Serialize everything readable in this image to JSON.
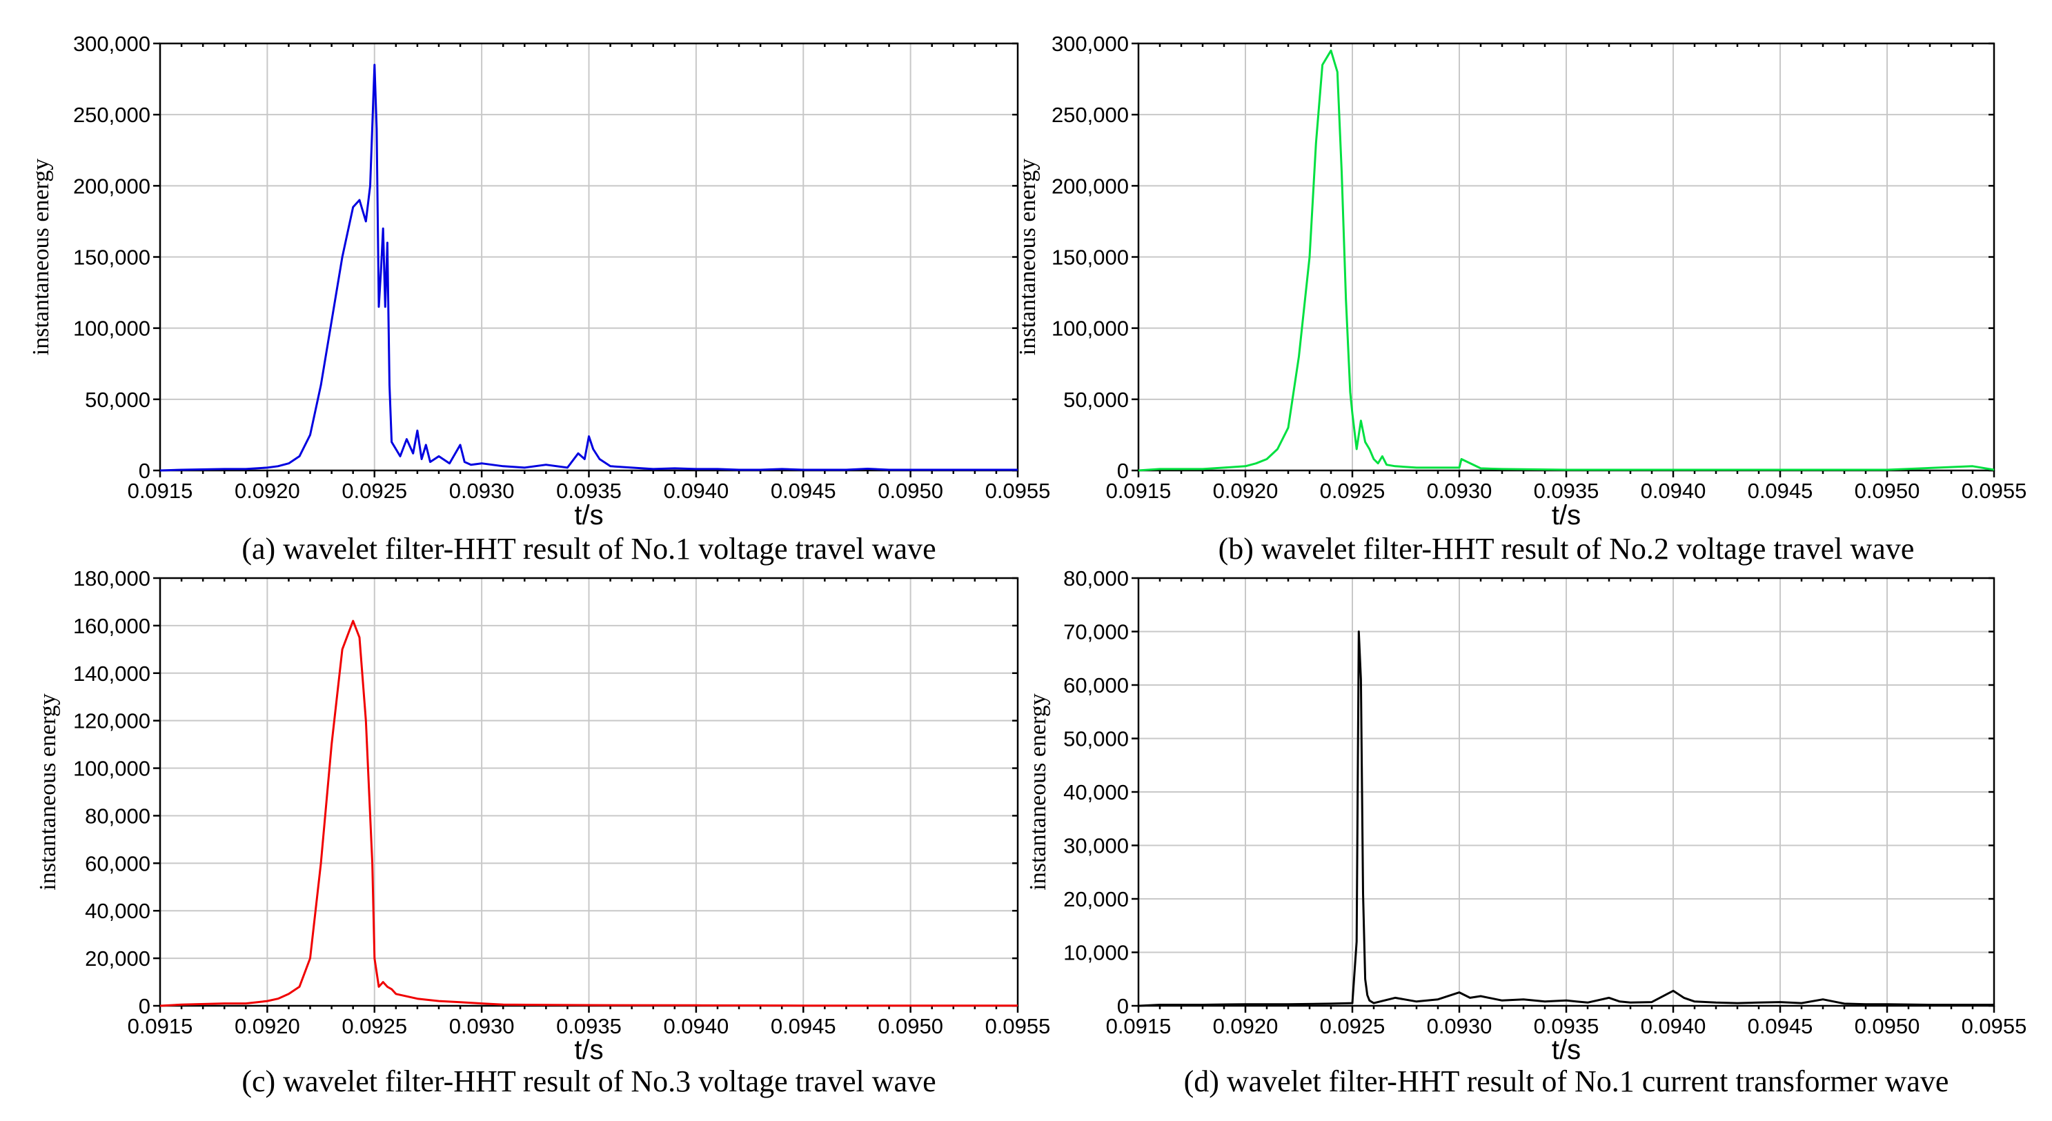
{
  "chart_data": [
    {
      "id": "a",
      "type": "line",
      "title": "",
      "caption": "(a) wavelet filter-HHT result of No.1 voltage travel wave",
      "xlabel": "t/s",
      "ylabel": "instantaneous energy",
      "xlim": [
        0.0915,
        0.0955
      ],
      "ylim": [
        0,
        300000
      ],
      "xticks": [
        "0.0915",
        "0.0920",
        "0.0925",
        "0.0930",
        "0.0935",
        "0.0940",
        "0.0945",
        "0.0950",
        "0.0955"
      ],
      "yticks": [
        "0",
        "50,000",
        "100,000",
        "150,000",
        "200,000",
        "250,000",
        "300,000"
      ],
      "grid": true,
      "series": [
        {
          "name": "No.1 voltage travel wave",
          "color": "#0000e0",
          "x": [
            0.0915,
            0.0916,
            0.0918,
            0.0919,
            0.092,
            0.09205,
            0.0921,
            0.09215,
            0.0922,
            0.09225,
            0.0923,
            0.09235,
            0.0924,
            0.09243,
            0.09246,
            0.09248,
            0.0925,
            0.09251,
            0.09252,
            0.09253,
            0.09254,
            0.09255,
            0.09256,
            0.09257,
            0.09258,
            0.0926,
            0.09262,
            0.09265,
            0.09268,
            0.0927,
            0.09272,
            0.09274,
            0.09276,
            0.0928,
            0.09285,
            0.0929,
            0.09292,
            0.09295,
            0.093,
            0.0931,
            0.0932,
            0.0933,
            0.0934,
            0.09345,
            0.09348,
            0.0935,
            0.09352,
            0.09355,
            0.0936,
            0.0937,
            0.0938,
            0.0939,
            0.094,
            0.0941,
            0.0942,
            0.0943,
            0.0944,
            0.0945,
            0.0946,
            0.0947,
            0.0948,
            0.0949,
            0.095,
            0.0951,
            0.0952,
            0.0953,
            0.0954,
            0.0955
          ],
          "y": [
            0,
            500,
            1000,
            1000,
            2000,
            3000,
            5000,
            10000,
            25000,
            60000,
            105000,
            150000,
            185000,
            190000,
            175000,
            200000,
            285000,
            240000,
            115000,
            140000,
            170000,
            115000,
            160000,
            60000,
            20000,
            15000,
            10000,
            22000,
            12000,
            28000,
            8000,
            18000,
            6000,
            10000,
            5000,
            18000,
            6000,
            4000,
            5000,
            3000,
            2000,
            4000,
            2000,
            12000,
            8000,
            24000,
            15000,
            8000,
            3000,
            2000,
            1000,
            1500,
            1000,
            1000,
            500,
            500,
            1000,
            500,
            500,
            500,
            1200,
            500,
            500,
            500,
            500,
            500,
            500,
            500
          ]
        }
      ]
    },
    {
      "id": "b",
      "type": "line",
      "title": "",
      "caption": "(b) wavelet filter-HHT result of No.2 voltage travel wave",
      "xlabel": "t/s",
      "ylabel": "instantaneous energy",
      "xlim": [
        0.0915,
        0.0955
      ],
      "ylim": [
        0,
        300000
      ],
      "xticks": [
        "0.0915",
        "0.0920",
        "0.0925",
        "0.0930",
        "0.0935",
        "0.0940",
        "0.0945",
        "0.0950",
        "0.0955"
      ],
      "yticks": [
        "0",
        "50,000",
        "100,000",
        "150,000",
        "200,000",
        "250,000",
        "300,000"
      ],
      "grid": true,
      "series": [
        {
          "name": "No.2 voltage travel wave",
          "color": "#00e040",
          "x": [
            0.0915,
            0.0916,
            0.0918,
            0.0919,
            0.092,
            0.09205,
            0.0921,
            0.09215,
            0.0922,
            0.09225,
            0.0923,
            0.09233,
            0.09236,
            0.0924,
            0.09243,
            0.09245,
            0.09247,
            0.09249,
            0.0925,
            0.09252,
            0.09254,
            0.09256,
            0.09258,
            0.0926,
            0.09262,
            0.09264,
            0.09266,
            0.0927,
            0.0928,
            0.0929,
            0.093,
            0.09301,
            0.0931,
            0.0932,
            0.0935,
            0.094,
            0.0945,
            0.095,
            0.0954,
            0.0955
          ],
          "y": [
            0,
            1000,
            1000,
            2000,
            3000,
            5000,
            8000,
            15000,
            30000,
            80000,
            150000,
            230000,
            285000,
            295000,
            280000,
            210000,
            120000,
            55000,
            40000,
            15000,
            35000,
            20000,
            15000,
            8000,
            5000,
            10000,
            4000,
            3000,
            2000,
            2000,
            2000,
            8000,
            1500,
            1000,
            500,
            500,
            500,
            500,
            3000,
            500
          ]
        }
      ]
    },
    {
      "id": "c",
      "type": "line",
      "title": "",
      "caption": "(c) wavelet filter-HHT result of No.3 voltage travel wave",
      "xlabel": "t/s",
      "ylabel": "instantaneous energy",
      "xlim": [
        0.0915,
        0.0955
      ],
      "ylim": [
        0,
        180000
      ],
      "xticks": [
        "0.0915",
        "0.0920",
        "0.0925",
        "0.0930",
        "0.0935",
        "0.0940",
        "0.0945",
        "0.0950",
        "0.0955"
      ],
      "yticks": [
        "0",
        "20,000",
        "40,000",
        "60,000",
        "80,000",
        "100,000",
        "120,000",
        "140,000",
        "160,000",
        "180,000"
      ],
      "grid": true,
      "series": [
        {
          "name": "No.3 voltage travel wave",
          "color": "#f00000",
          "x": [
            0.0915,
            0.0916,
            0.0918,
            0.0919,
            0.092,
            0.09205,
            0.0921,
            0.09215,
            0.0922,
            0.09225,
            0.0923,
            0.09235,
            0.0924,
            0.09243,
            0.09246,
            0.09249,
            0.0925,
            0.09252,
            0.09254,
            0.09256,
            0.09258,
            0.0926,
            0.0927,
            0.0928,
            0.0929,
            0.093,
            0.0931,
            0.0935,
            0.094,
            0.0945,
            0.095,
            0.0955
          ],
          "y": [
            0,
            500,
            1000,
            1000,
            2000,
            3000,
            5000,
            8000,
            20000,
            60000,
            110000,
            150000,
            162000,
            155000,
            120000,
            60000,
            20000,
            8000,
            10000,
            8000,
            7000,
            5000,
            3000,
            2000,
            1500,
            1000,
            500,
            300,
            200,
            100,
            100,
            100
          ]
        }
      ]
    },
    {
      "id": "d",
      "type": "line",
      "title": "",
      "caption": "(d) wavelet filter-HHT result of No.1 current transformer wave",
      "xlabel": "t/s",
      "ylabel": "instantaneous energy",
      "xlim": [
        0.0915,
        0.0955
      ],
      "ylim": [
        0,
        80000
      ],
      "xticks": [
        "0.0915",
        "0.0920",
        "0.0925",
        "0.0930",
        "0.0935",
        "0.0940",
        "0.0945",
        "0.0950",
        "0.0955"
      ],
      "yticks": [
        "0",
        "10,000",
        "20,000",
        "30,000",
        "40,000",
        "50,000",
        "60,000",
        "70,000",
        "80,000"
      ],
      "grid": true,
      "series": [
        {
          "name": "No.1 current transformer wave",
          "color": "#000000",
          "x": [
            0.0915,
            0.0916,
            0.0918,
            0.092,
            0.0922,
            0.0924,
            0.0925,
            0.09252,
            0.09253,
            0.09254,
            0.09255,
            0.09256,
            0.09257,
            0.09258,
            0.0926,
            0.0927,
            0.0928,
            0.0929,
            0.093,
            0.09305,
            0.0931,
            0.0932,
            0.0933,
            0.0934,
            0.0935,
            0.0936,
            0.0937,
            0.09375,
            0.0938,
            0.0939,
            0.094,
            0.09405,
            0.0941,
            0.0942,
            0.0943,
            0.0944,
            0.0945,
            0.0946,
            0.0947,
            0.0948,
            0.0949,
            0.095,
            0.0952,
            0.0954,
            0.0955
          ],
          "y": [
            0,
            200,
            200,
            300,
            300,
            400,
            500,
            12000,
            70000,
            61000,
            21000,
            5000,
            2000,
            1000,
            500,
            1500,
            800,
            1200,
            2500,
            1500,
            1800,
            1000,
            1200,
            800,
            1000,
            600,
            1500,
            800,
            600,
            700,
            2800,
            1500,
            800,
            600,
            500,
            600,
            700,
            500,
            1200,
            400,
            300,
            300,
            200,
            200,
            200
          ]
        }
      ]
    }
  ]
}
